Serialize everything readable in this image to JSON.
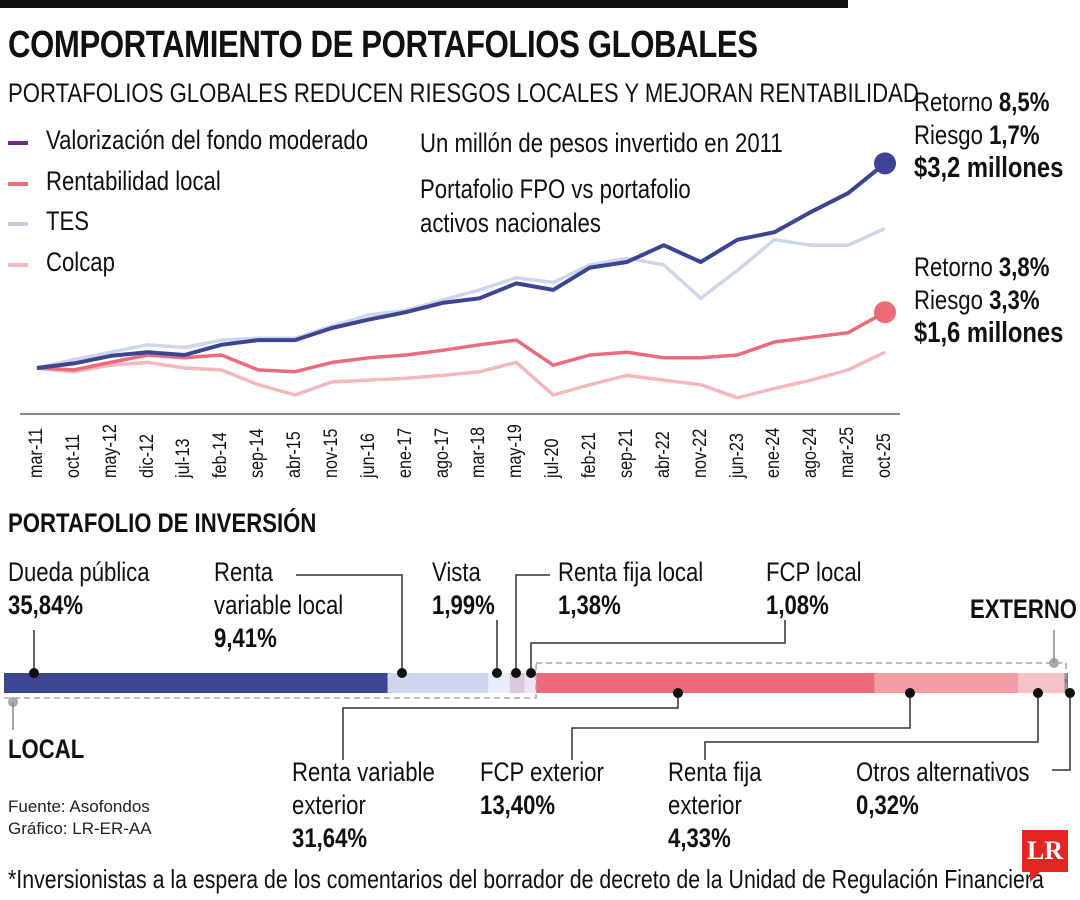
{
  "title": "COMPORTAMIENTO DE PORTAFOLIOS GLOBALES",
  "subtitle": "PORTAFOLIOS GLOBALES REDUCEN RIESGOS LOCALES Y MEJORAN RENTABILIDAD",
  "chart_data": [
    {
      "type": "line",
      "notes": [
        "Un millón de pesos invertido en 2011",
        "Portafolio FPO vs portafolio",
        "activos nacionales"
      ],
      "categories": [
        "mar-11",
        "oct-11",
        "may-12",
        "dic-12",
        "jul-13",
        "feb-14",
        "sep-14",
        "abr-15",
        "nov-15",
        "jun-16",
        "ene-17",
        "ago-17",
        "mar-18",
        "may-19",
        "jul-20",
        "feb-21",
        "sep-21",
        "abr-22",
        "nov-22",
        "jun-23",
        "ene-24",
        "ago-24",
        "mar-25",
        "oct-25"
      ],
      "series": [
        {
          "name": "Valorización del fondo moderado",
          "color": "#3d4494",
          "values": [
            1.0,
            1.05,
            1.13,
            1.17,
            1.14,
            1.25,
            1.3,
            1.3,
            1.43,
            1.52,
            1.6,
            1.7,
            1.75,
            1.91,
            1.84,
            2.08,
            2.14,
            2.32,
            2.14,
            2.38,
            2.46,
            2.68,
            2.88,
            3.2
          ]
        },
        {
          "name": "Rentabilidad local",
          "color": "#ec6b7b",
          "values": [
            1.0,
            0.98,
            1.06,
            1.14,
            1.11,
            1.14,
            0.98,
            0.96,
            1.06,
            1.11,
            1.14,
            1.19,
            1.25,
            1.3,
            1.03,
            1.14,
            1.17,
            1.11,
            1.11,
            1.14,
            1.28,
            1.33,
            1.38,
            1.6
          ]
        },
        {
          "name": "TES",
          "color": "#cdd6ea",
          "values": [
            1.0,
            1.09,
            1.17,
            1.25,
            1.22,
            1.3,
            1.32,
            1.32,
            1.45,
            1.57,
            1.62,
            1.73,
            1.84,
            1.97,
            1.92,
            2.11,
            2.18,
            2.11,
            1.75,
            2.05,
            2.38,
            2.32,
            2.32,
            2.5
          ]
        },
        {
          "name": "Colcap",
          "color": "#f4b8bd",
          "values": [
            1.0,
            0.96,
            1.03,
            1.06,
            1.0,
            0.98,
            0.82,
            0.71,
            0.85,
            0.87,
            0.89,
            0.92,
            0.96,
            1.06,
            0.71,
            0.82,
            0.92,
            0.87,
            0.82,
            0.68,
            0.78,
            0.87,
            0.98,
            1.17
          ]
        }
      ],
      "annotations": {
        "fpo": {
          "ret_label": "Retorno",
          "ret": "8,5%",
          "risk_label": "Riesgo",
          "risk": "1,7%",
          "value": "$3,2 millones"
        },
        "local": {
          "ret_label": "Retorno",
          "ret": "3,8%",
          "risk_label": "Riesgo",
          "risk": "3,3%",
          "value": "$1,6 millones"
        }
      },
      "legend_position": "top-left",
      "grid": false
    },
    {
      "type": "bar",
      "title": "PORTAFOLIO DE INVERSIÓN",
      "group_labels": {
        "local": "LOCAL",
        "external": "EXTERNO"
      },
      "segments": [
        {
          "name": "Dueda pública",
          "label": "35,84%",
          "value": 35.84,
          "group": "local",
          "color": "#3d4494"
        },
        {
          "name": "Renta variable local",
          "label": "9,41%",
          "value": 9.41,
          "group": "local",
          "color": "#cdd6ea"
        },
        {
          "name": "Vista",
          "label": "1,99%",
          "value": 1.99,
          "group": "local",
          "color": "#e6eefa"
        },
        {
          "name": "Renta fija local",
          "label": "1,38%",
          "value": 1.38,
          "group": "local",
          "color": "#dcc6e0"
        },
        {
          "name": "FCP local",
          "label": "1,08%",
          "value": 1.08,
          "group": "local",
          "color": "#ede4f2"
        },
        {
          "name": "Renta variable exterior",
          "label": "31,64%",
          "value": 31.64,
          "group": "external",
          "color": "#ec6b7b"
        },
        {
          "name": "FCP exterior",
          "label": "13,40%",
          "value": 13.4,
          "group": "external",
          "color": "#f29ca4"
        },
        {
          "name": "Renta fija exterior",
          "label": "4,33%",
          "value": 4.33,
          "group": "external",
          "color": "#f8c3c7"
        },
        {
          "name": "Otros alternativos",
          "label": "0,32%",
          "value": 0.32,
          "group": "external",
          "color": "#777777"
        }
      ]
    }
  ],
  "labels_split": {
    "renta_var_local": [
      "Renta",
      "variable local"
    ],
    "renta_var_ext": [
      "Renta variable",
      "exterior"
    ],
    "renta_fija_ext": [
      "Renta fija",
      "exterior"
    ]
  },
  "source": "Fuente: Asofondos",
  "graphic": "Gráfico: LR-ER-AA",
  "footnote": "*Inversionistas a la espera de los comentarios del borrador de decreto de la Unidad de Regulación Financiera",
  "logo": "LR"
}
